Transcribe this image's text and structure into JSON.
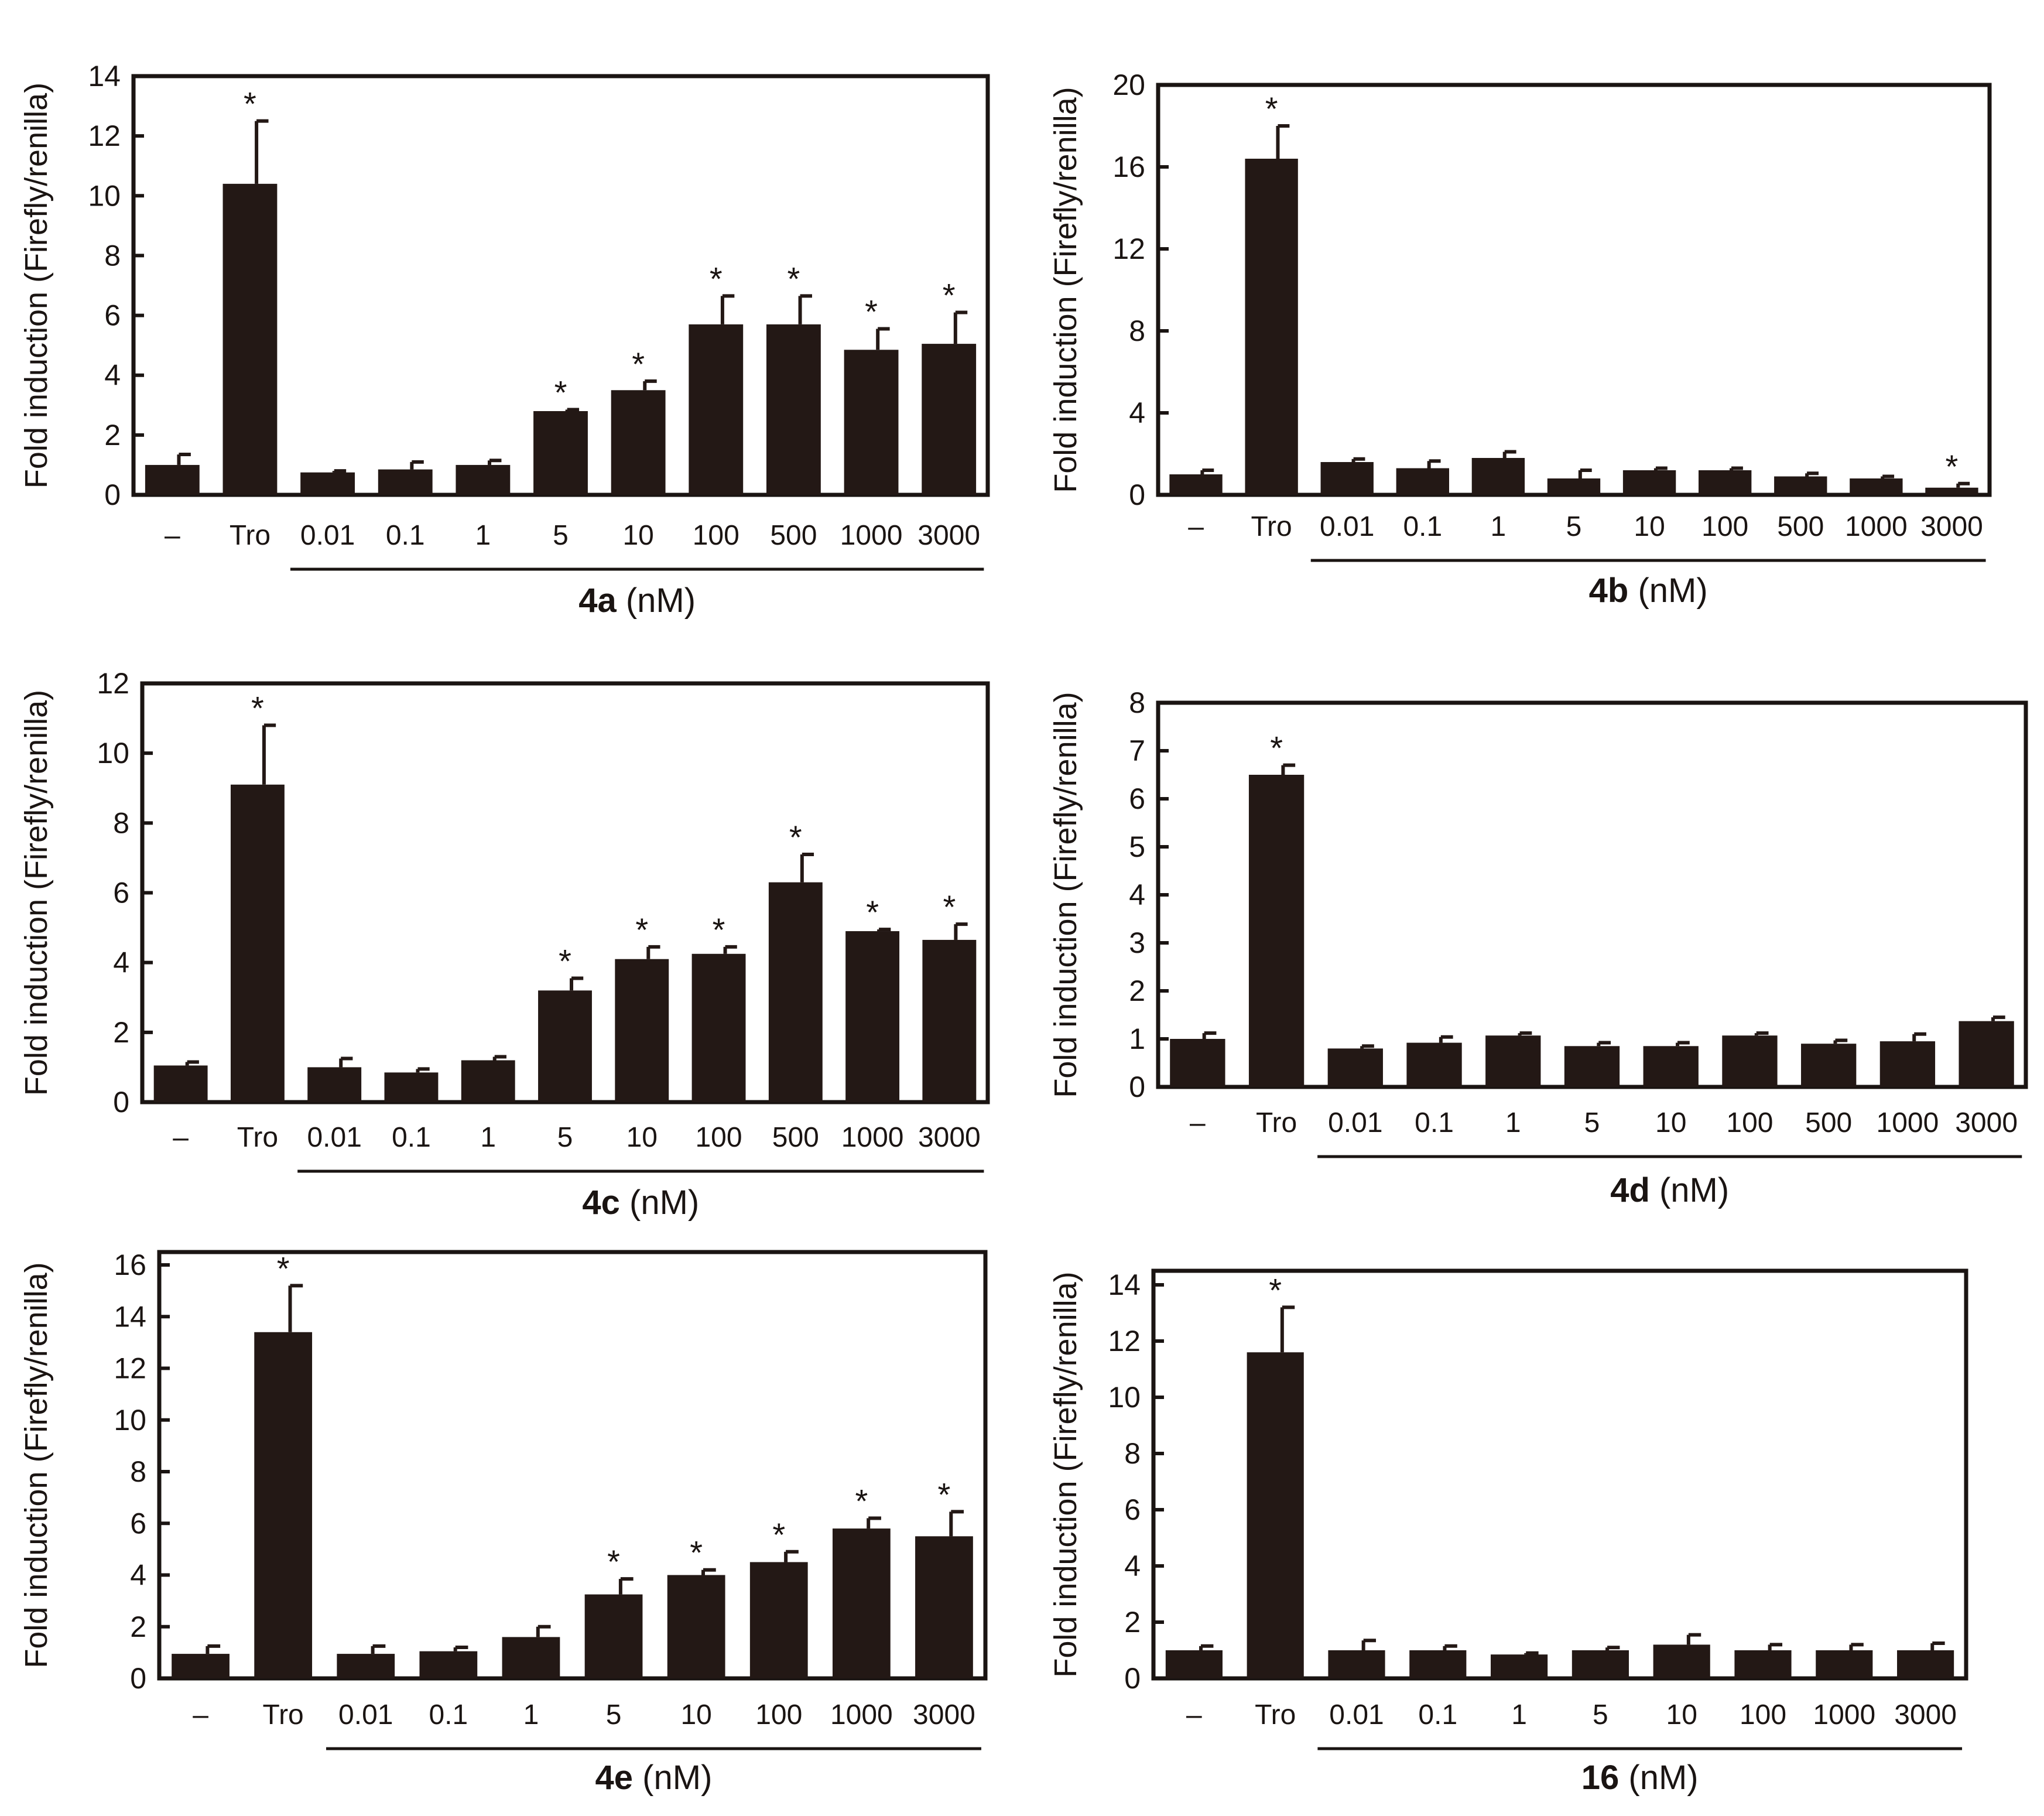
{
  "figure": {
    "bar_color": "#231815",
    "axis_color": "#1a1412",
    "asterisk_symbol": "*",
    "unit_suffix": " (nM)"
  },
  "chart_data": [
    {
      "type": "bar",
      "compound": "4a",
      "ylabel": "Fold induction (Firefly/renilla)",
      "xlabel": "4a (nM)",
      "categories": [
        "–",
        "Tro",
        "0.01",
        "0.1",
        "1",
        "5",
        "10",
        "100",
        "500",
        "1000",
        "3000"
      ],
      "values": [
        1.0,
        10.4,
        0.75,
        0.85,
        1.0,
        2.8,
        3.5,
        5.7,
        5.7,
        4.85,
        5.05
      ],
      "errors": [
        0.35,
        2.1,
        0.05,
        0.25,
        0.15,
        0.05,
        0.3,
        0.95,
        0.95,
        0.7,
        1.05
      ],
      "significant": [
        false,
        true,
        false,
        false,
        false,
        true,
        true,
        true,
        true,
        true,
        true
      ],
      "ylim": [
        0,
        14
      ],
      "yticks": [
        0,
        2,
        4,
        6,
        8,
        10,
        12,
        14
      ]
    },
    {
      "type": "bar",
      "compound": "4b",
      "ylabel": "Fold induction (Firefly/renilla)",
      "xlabel": "4b (nM)",
      "categories": [
        "–",
        "Tro",
        "0.01",
        "0.1",
        "1",
        "5",
        "10",
        "100",
        "500",
        "1000",
        "3000"
      ],
      "values": [
        1.0,
        16.4,
        1.6,
        1.3,
        1.8,
        0.8,
        1.2,
        1.2,
        0.9,
        0.8,
        0.35
      ],
      "errors": [
        0.2,
        1.6,
        0.15,
        0.35,
        0.3,
        0.4,
        0.1,
        0.1,
        0.15,
        0.1,
        0.2
      ],
      "significant": [
        false,
        true,
        false,
        false,
        false,
        false,
        false,
        false,
        false,
        false,
        true
      ],
      "ylim": [
        0,
        20
      ],
      "yticks": [
        0,
        4,
        8,
        12,
        16,
        20
      ]
    },
    {
      "type": "bar",
      "compound": "4c",
      "ylabel": "Fold induction (Firefly/renilla)",
      "xlabel": "4c (nM)",
      "categories": [
        "–",
        "Tro",
        "0.01",
        "0.1",
        "1",
        "5",
        "10",
        "100",
        "500",
        "1000",
        "3000"
      ],
      "values": [
        1.05,
        9.1,
        1.0,
        0.85,
        1.2,
        3.2,
        4.1,
        4.25,
        6.3,
        4.9,
        4.65
      ],
      "errors": [
        0.1,
        1.7,
        0.25,
        0.1,
        0.1,
        0.35,
        0.35,
        0.2,
        0.8,
        0.05,
        0.45
      ],
      "significant": [
        false,
        true,
        false,
        false,
        false,
        true,
        true,
        true,
        true,
        true,
        true
      ],
      "ylim": [
        0,
        12
      ],
      "yticks": [
        0,
        2,
        4,
        6,
        8,
        10,
        12
      ]
    },
    {
      "type": "bar",
      "compound": "4d",
      "ylabel": "Fold induction (Firefly/renilla)",
      "xlabel": "4d (nM)",
      "categories": [
        "–",
        "Tro",
        "0.01",
        "0.1",
        "1",
        "5",
        "10",
        "100",
        "500",
        "1000",
        "3000"
      ],
      "values": [
        1.0,
        6.5,
        0.8,
        0.92,
        1.07,
        0.85,
        0.85,
        1.07,
        0.9,
        0.95,
        1.37
      ],
      "errors": [
        0.12,
        0.2,
        0.05,
        0.12,
        0.05,
        0.07,
        0.07,
        0.05,
        0.07,
        0.15,
        0.08
      ],
      "significant": [
        false,
        true,
        false,
        false,
        false,
        false,
        false,
        false,
        false,
        false,
        false
      ],
      "ylim": [
        0,
        8
      ],
      "yticks": [
        0,
        1,
        2,
        3,
        4,
        5,
        6,
        7,
        8
      ]
    },
    {
      "type": "bar",
      "compound": "4e",
      "ylabel": "Fold induction (Firefly/renilla)",
      "xlabel": "4e (nM)",
      "categories": [
        "–",
        "Tro",
        "0.01",
        "0.1",
        "1",
        "5",
        "10",
        "100",
        "1000",
        "3000"
      ],
      "values": [
        0.95,
        13.4,
        0.95,
        1.05,
        1.6,
        3.25,
        4.0,
        4.5,
        5.8,
        5.5
      ],
      "errors": [
        0.3,
        1.8,
        0.3,
        0.15,
        0.4,
        0.6,
        0.2,
        0.4,
        0.4,
        0.95
      ],
      "significant": [
        false,
        true,
        false,
        false,
        false,
        true,
        true,
        true,
        true,
        true
      ],
      "ylim": [
        0,
        16.5
      ],
      "yticks": [
        0,
        2,
        4,
        6,
        8,
        10,
        12,
        14,
        16
      ]
    },
    {
      "type": "bar",
      "compound": "16",
      "ylabel": "Fold induction (Firefly/renilla)",
      "xlabel": "16 (nM)",
      "categories": [
        "–",
        "Tro",
        "0.01",
        "0.1",
        "1",
        "5",
        "10",
        "100",
        "1000",
        "3000"
      ],
      "values": [
        1.0,
        11.6,
        1.0,
        1.0,
        0.85,
        1.0,
        1.2,
        1.0,
        1.0,
        1.0
      ],
      "errors": [
        0.15,
        1.6,
        0.35,
        0.15,
        0.05,
        0.1,
        0.35,
        0.2,
        0.2,
        0.25
      ],
      "significant": [
        false,
        true,
        false,
        false,
        false,
        false,
        false,
        false,
        false,
        false
      ],
      "ylim": [
        0,
        14.5
      ],
      "yticks": [
        0,
        2,
        4,
        6,
        8,
        10,
        12,
        14
      ]
    }
  ]
}
